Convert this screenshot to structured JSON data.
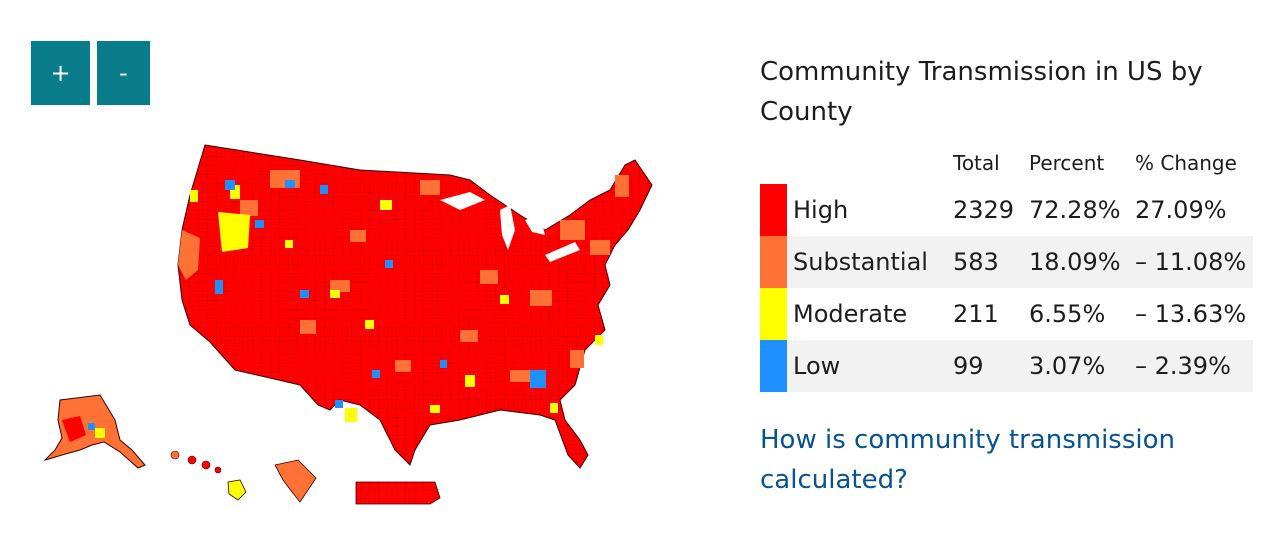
{
  "zoom": {
    "in_label": "+",
    "out_label": "-"
  },
  "legend": {
    "title": "Community Transmission in US by County",
    "headers": {
      "level": "",
      "total": "Total",
      "percent": "Percent",
      "change": "% Change"
    },
    "rows": [
      {
        "label": "High",
        "total": "2329",
        "percent": "72.28%",
        "change": "27.09%",
        "color": "#ff0000"
      },
      {
        "label": "Substantial",
        "total": "583",
        "percent": "18.09%",
        "change": "– 11.08%",
        "color": "#ff7135"
      },
      {
        "label": "Moderate",
        "total": "211",
        "percent": "6.55%",
        "change": "– 13.63%",
        "color": "#ffff00"
      },
      {
        "label": "Low",
        "total": "99",
        "percent": "3.07%",
        "change": "– 2.39%",
        "color": "#1e90ff"
      }
    ]
  },
  "help_link": "How is community transmission calculated?",
  "map": {
    "regions": [
      "contiguous-us",
      "alaska",
      "hawaii",
      "guam",
      "puerto-rico"
    ],
    "high_color": "#ff0000",
    "border_color": "#8b0000"
  }
}
